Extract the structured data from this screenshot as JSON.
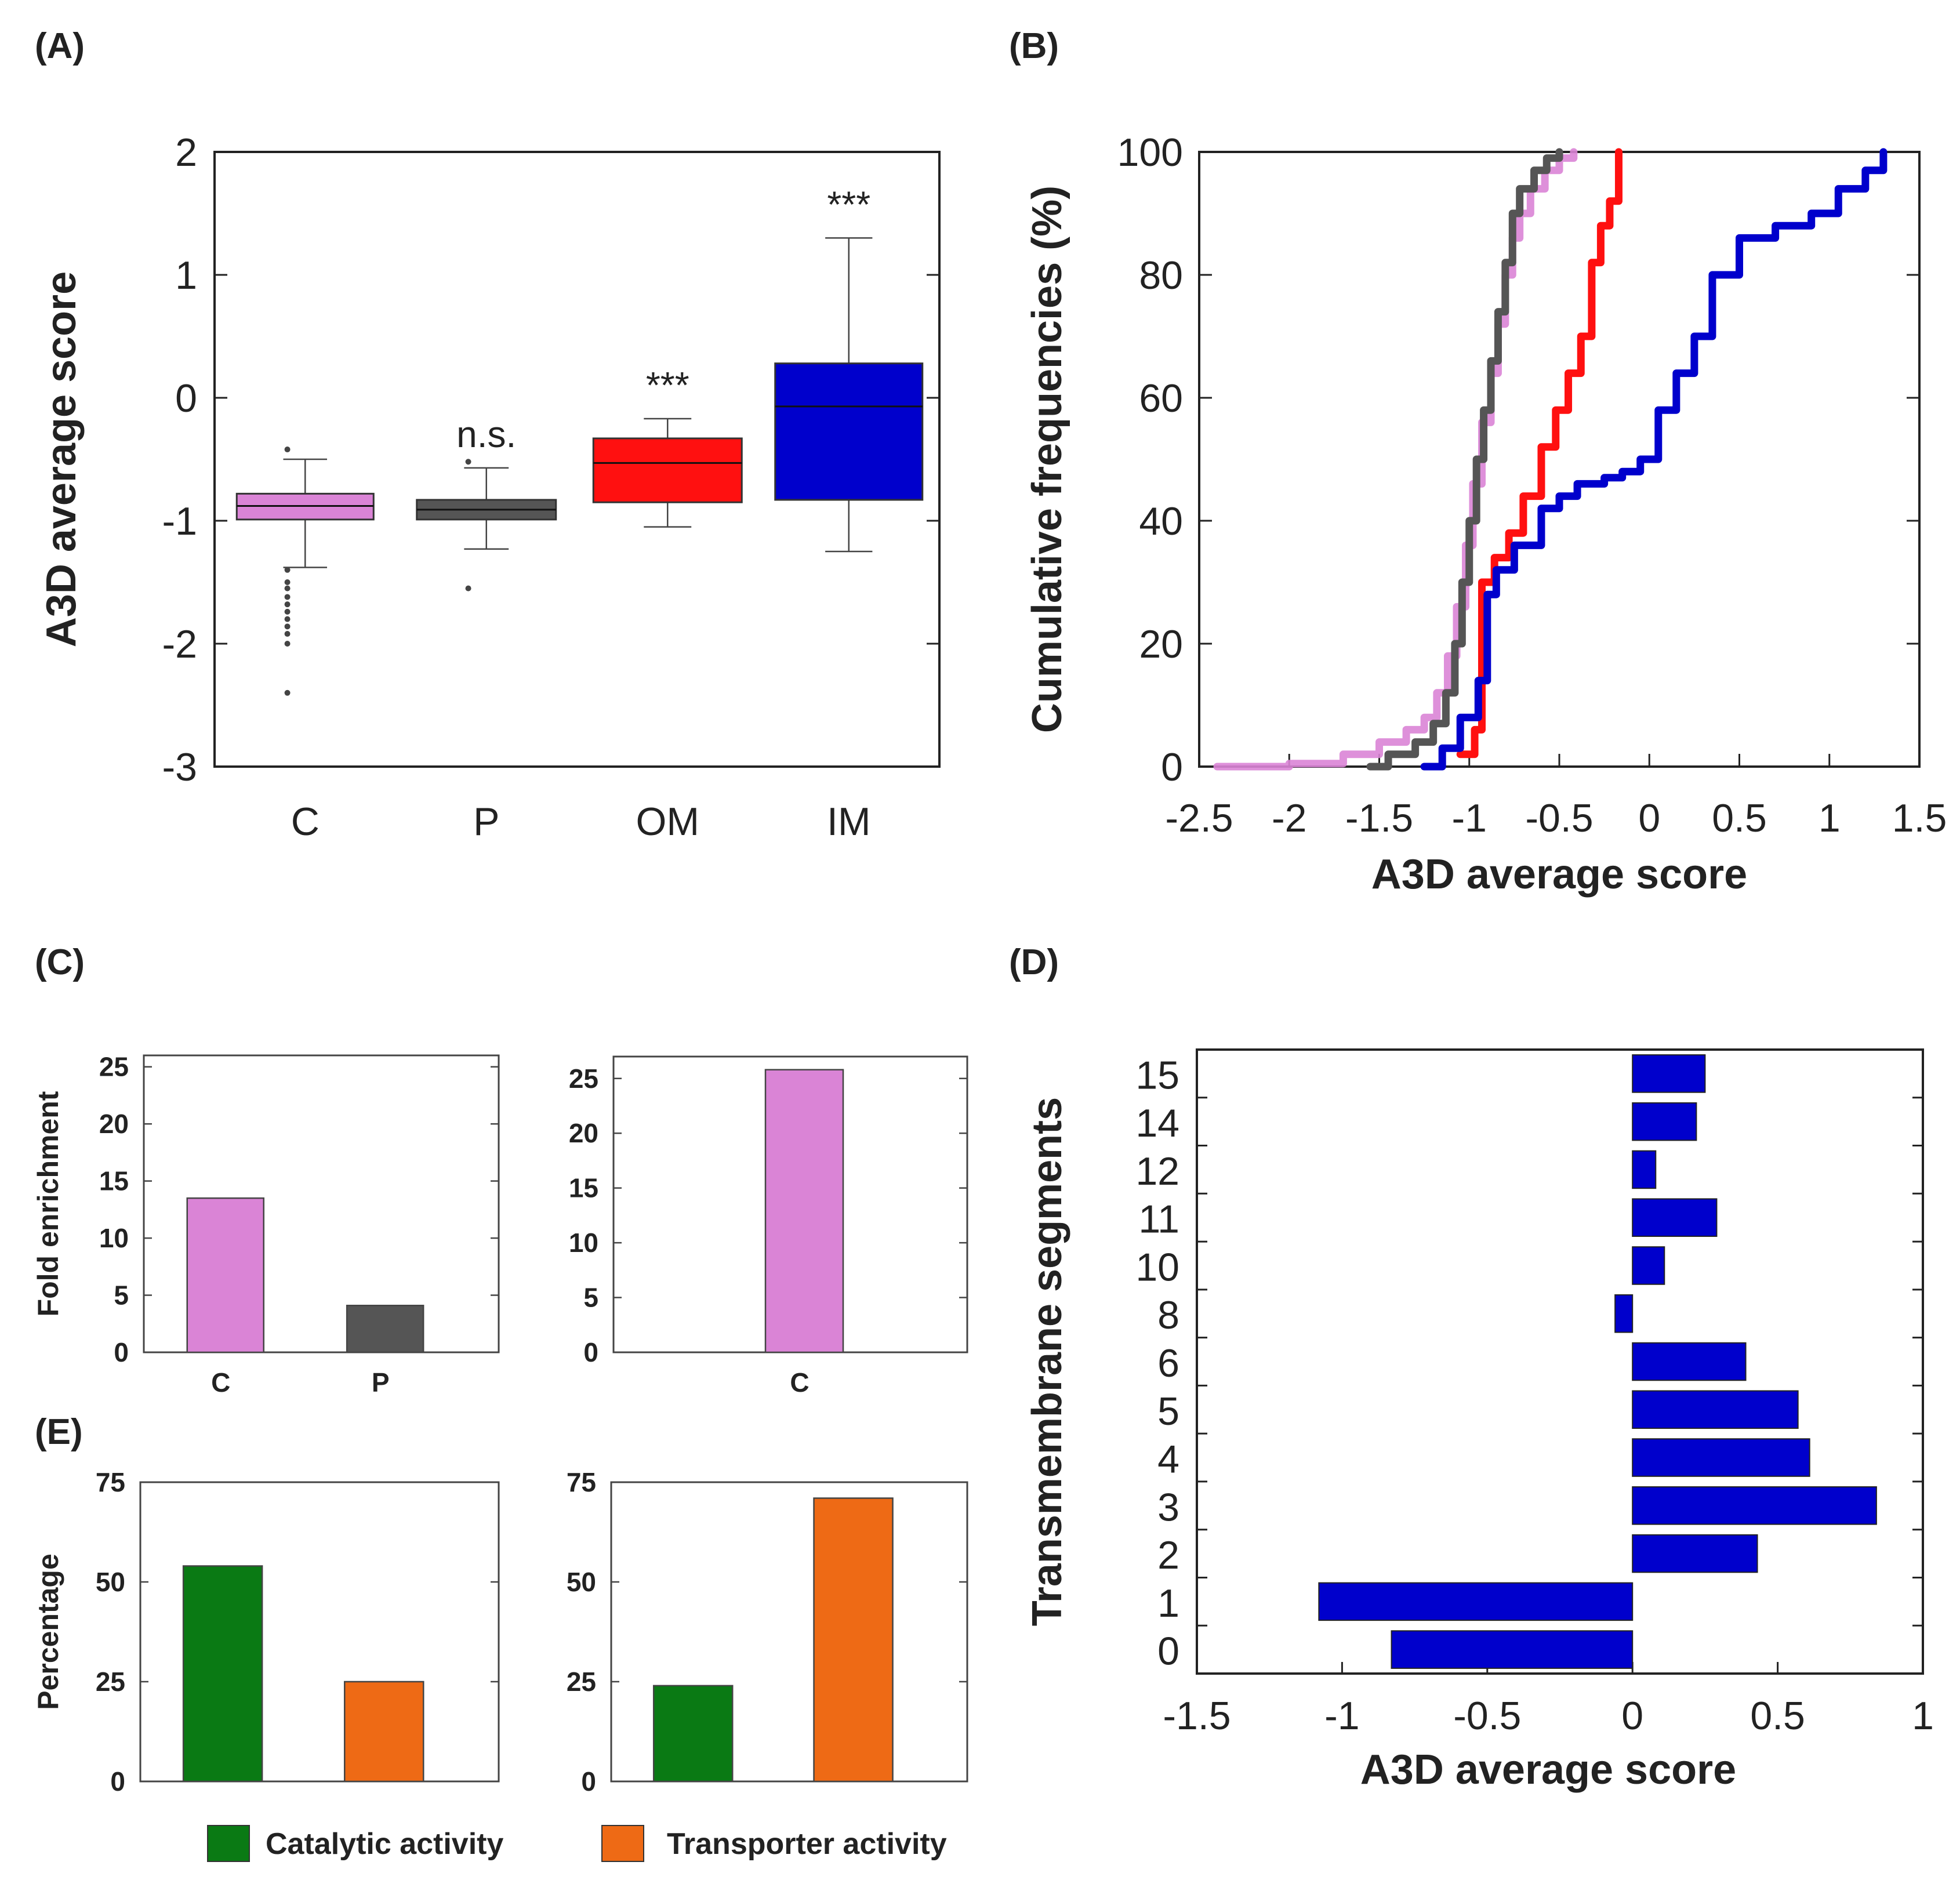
{
  "colors": {
    "C": "#da84d6",
    "P": "#555555",
    "OM": "#ff1010",
    "IM": "#0000cc",
    "catalytic": "#0a7a14",
    "transporter": "#ee6a15"
  },
  "panels": {
    "A": {
      "letter": "(A)"
    },
    "B": {
      "letter": "(B)"
    },
    "C": {
      "letter": "(C)"
    },
    "D": {
      "letter": "(D)"
    },
    "E": {
      "letter": "(E)"
    }
  },
  "chart_data": [
    {
      "id": "A",
      "type": "box",
      "ylabel": "A3D average score",
      "ylim": [
        -3,
        2
      ],
      "yticks": [
        "-3",
        "-2",
        "-1",
        "0",
        "1",
        "2"
      ],
      "categories": [
        "C",
        "P",
        "OM",
        "IM"
      ],
      "boxes": [
        {
          "name": "C",
          "whisker_low": -1.38,
          "q1": -0.99,
          "median": -0.88,
          "q3": -0.78,
          "whisker_high": -0.5,
          "annotation": "",
          "outliers": [
            -0.42,
            -1.4,
            -1.5,
            -1.55,
            -1.62,
            -1.68,
            -1.74,
            -1.8,
            -1.86,
            -1.92,
            -2.0,
            -2.4
          ]
        },
        {
          "name": "P",
          "whisker_low": -1.23,
          "q1": -0.99,
          "median": -0.91,
          "q3": -0.83,
          "whisker_high": -0.57,
          "annotation": "n.s.",
          "outliers": [
            -0.52,
            -1.55
          ]
        },
        {
          "name": "OM",
          "whisker_low": -1.05,
          "q1": -0.85,
          "median": -0.53,
          "q3": -0.33,
          "whisker_high": -0.17,
          "annotation": "***",
          "outliers": []
        },
        {
          "name": "IM",
          "whisker_low": -1.25,
          "q1": -0.83,
          "median": -0.07,
          "q3": 0.28,
          "whisker_high": 1.3,
          "annotation": "***",
          "outliers": []
        }
      ]
    },
    {
      "id": "B",
      "type": "line",
      "xlabel": "A3D average score",
      "ylabel": "Cumulative frequencies (%)",
      "xlim": [
        -2.5,
        1.5
      ],
      "ylim": [
        0,
        100
      ],
      "xticks": [
        "-2.5",
        "-2",
        "-1.5",
        "-1",
        "-0.5",
        "0",
        "0.5",
        "1",
        "1.5"
      ],
      "yticks": [
        "0",
        "20",
        "40",
        "60",
        "80",
        "100"
      ],
      "series": [
        {
          "name": "C",
          "color_key": "C",
          "x": [
            -2.4,
            -2.0,
            -1.7,
            -1.5,
            -1.35,
            -1.25,
            -1.18,
            -1.12,
            -1.07,
            -1.02,
            -0.98,
            -0.93,
            -0.88,
            -0.84,
            -0.8,
            -0.76,
            -0.72,
            -0.66,
            -0.58,
            -0.5,
            -0.42
          ],
          "y": [
            0,
            0.5,
            2,
            4,
            6,
            8,
            12,
            18,
            26,
            36,
            46,
            56,
            64,
            72,
            80,
            86,
            90,
            94,
            97,
            99,
            100
          ]
        },
        {
          "name": "P",
          "color_key": "P",
          "x": [
            -1.55,
            -1.45,
            -1.3,
            -1.2,
            -1.13,
            -1.08,
            -1.04,
            -1.0,
            -0.96,
            -0.92,
            -0.88,
            -0.84,
            -0.8,
            -0.76,
            -0.72,
            -0.64,
            -0.57,
            -0.5
          ],
          "y": [
            0,
            2,
            4,
            7,
            12,
            20,
            30,
            40,
            50,
            58,
            66,
            74,
            82,
            90,
            94,
            97,
            99,
            100
          ]
        },
        {
          "name": "OM",
          "color_key": "OM",
          "x": [
            -1.05,
            -0.97,
            -0.93,
            -0.86,
            -0.78,
            -0.7,
            -0.6,
            -0.52,
            -0.45,
            -0.38,
            -0.32,
            -0.27,
            -0.22,
            -0.17,
            -0.17
          ],
          "y": [
            2,
            6,
            30,
            34,
            38,
            44,
            52,
            58,
            64,
            70,
            82,
            88,
            92,
            94,
            100
          ]
        },
        {
          "name": "IM",
          "color_key": "IM",
          "x": [
            -1.25,
            -1.15,
            -1.05,
            -0.95,
            -0.9,
            -0.85,
            -0.75,
            -0.6,
            -0.5,
            -0.4,
            -0.25,
            -0.15,
            -0.05,
            0.05,
            0.15,
            0.25,
            0.35,
            0.5,
            0.7,
            0.9,
            1.05,
            1.2,
            1.3
          ],
          "y": [
            0,
            3,
            8,
            14,
            28,
            32,
            36,
            42,
            44,
            46,
            47,
            48,
            50,
            58,
            64,
            70,
            80,
            86,
            88,
            90,
            94,
            97,
            100
          ]
        }
      ]
    },
    {
      "id": "C-left",
      "type": "bar",
      "ylabel": "Fold enrichment",
      "ylim": [
        0,
        26
      ],
      "yticks": [
        "0",
        "5",
        "10",
        "15",
        "20",
        "25"
      ],
      "categories": [
        "C",
        "P"
      ],
      "values": [
        13.5,
        4.1
      ],
      "color_keys": [
        "C",
        "P"
      ]
    },
    {
      "id": "C-right",
      "type": "bar",
      "ylabel": "",
      "ylim": [
        0,
        27
      ],
      "yticks": [
        "0",
        "5",
        "10",
        "15",
        "20",
        "25"
      ],
      "categories": [
        "C"
      ],
      "values": [
        25.8
      ],
      "color_keys": [
        "C"
      ]
    },
    {
      "id": "E-left",
      "type": "bar",
      "ylabel": "Percentage",
      "ylim": [
        0,
        75
      ],
      "yticks": [
        "0",
        "25",
        "50",
        "75"
      ],
      "categories": [
        "Catalytic activity",
        "Transporter activity"
      ],
      "values": [
        54,
        25
      ],
      "color_keys": [
        "catalytic",
        "transporter"
      ]
    },
    {
      "id": "E-right",
      "type": "bar",
      "ylabel": "",
      "ylim": [
        0,
        75
      ],
      "yticks": [
        "0",
        "25",
        "50",
        "75"
      ],
      "categories": [
        "Catalytic activity",
        "Transporter activity"
      ],
      "values": [
        24,
        71
      ],
      "color_keys": [
        "catalytic",
        "transporter"
      ]
    },
    {
      "id": "D",
      "type": "bar",
      "orientation": "horizontal",
      "xlabel": "A3D average score",
      "ylabel": "Transmembrane segments",
      "xlim": [
        -1.5,
        1.0
      ],
      "xticks": [
        "-1.5",
        "-1",
        "-0.5",
        "0",
        "0.5",
        "1"
      ],
      "categories": [
        "0",
        "1",
        "2",
        "3",
        "4",
        "5",
        "6",
        "8",
        "10",
        "11",
        "12",
        "14",
        "15"
      ],
      "values": [
        -0.83,
        -1.08,
        0.43,
        0.84,
        0.61,
        0.57,
        0.39,
        -0.06,
        0.11,
        0.29,
        0.08,
        0.22,
        0.25
      ],
      "color_key": "IM"
    }
  ],
  "legend": [
    {
      "label": "Catalytic activity",
      "color_key": "catalytic"
    },
    {
      "label": "Transporter activity",
      "color_key": "transporter"
    }
  ]
}
